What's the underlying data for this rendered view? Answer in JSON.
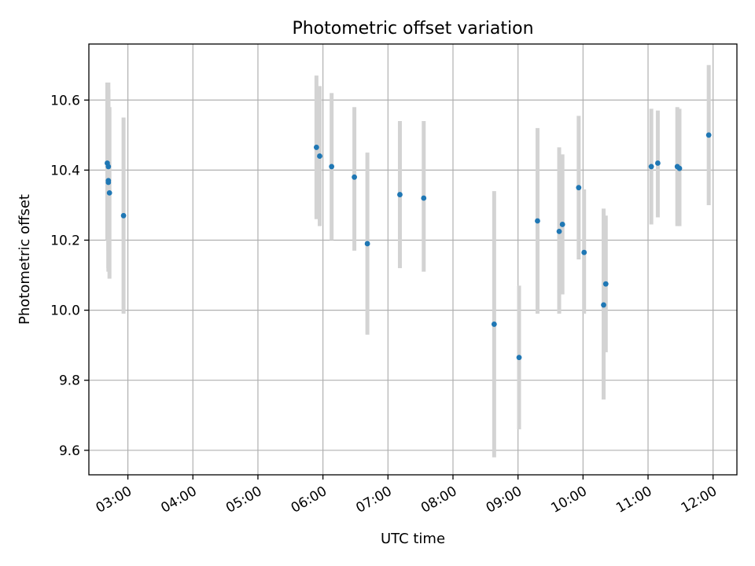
{
  "chart_data": {
    "type": "scatter",
    "title": "Photometric offset variation",
    "xlabel": "UTC time",
    "ylabel": "Photometric offset",
    "xlim": [
      "02:24",
      "12:22"
    ],
    "ylim": [
      9.53,
      10.76
    ],
    "x_ticks": [
      "03:00",
      "04:00",
      "05:00",
      "06:00",
      "07:00",
      "08:00",
      "09:00",
      "10:00",
      "11:00",
      "12:00"
    ],
    "y_ticks": [
      "9.6",
      "9.8",
      "10.0",
      "10.2",
      "10.4",
      "10.6"
    ],
    "grid": true,
    "marker_color": "#1f77b4",
    "errorbar_color": "#d3d3d3",
    "points": [
      {
        "x": "02:41",
        "y": 10.42,
        "err_low": 10.2,
        "err_high": 10.65
      },
      {
        "x": "02:42",
        "y": 10.41,
        "err_low": 10.17,
        "err_high": 10.65
      },
      {
        "x": "02:42",
        "y": 10.37,
        "err_low": 10.12,
        "err_high": 10.63
      },
      {
        "x": "02:42",
        "y": 10.365,
        "err_low": 10.11,
        "err_high": 10.63
      },
      {
        "x": "02:43",
        "y": 10.335,
        "err_low": 10.09,
        "err_high": 10.58
      },
      {
        "x": "02:56",
        "y": 10.27,
        "err_low": 9.99,
        "err_high": 10.55
      },
      {
        "x": "05:54",
        "y": 10.465,
        "err_low": 10.26,
        "err_high": 10.67
      },
      {
        "x": "05:57",
        "y": 10.44,
        "err_low": 10.24,
        "err_high": 10.64
      },
      {
        "x": "06:08",
        "y": 10.41,
        "err_low": 10.2,
        "err_high": 10.62
      },
      {
        "x": "06:29",
        "y": 10.38,
        "err_low": 10.17,
        "err_high": 10.58
      },
      {
        "x": "06:41",
        "y": 10.19,
        "err_low": 9.93,
        "err_high": 10.45
      },
      {
        "x": "07:11",
        "y": 10.33,
        "err_low": 10.12,
        "err_high": 10.54
      },
      {
        "x": "07:33",
        "y": 10.32,
        "err_low": 10.11,
        "err_high": 10.54
      },
      {
        "x": "08:38",
        "y": 9.96,
        "err_low": 9.58,
        "err_high": 10.34
      },
      {
        "x": "09:01",
        "y": 9.865,
        "err_low": 9.66,
        "err_high": 10.07
      },
      {
        "x": "09:18",
        "y": 10.255,
        "err_low": 9.99,
        "err_high": 10.52
      },
      {
        "x": "09:38",
        "y": 10.225,
        "err_low": 9.99,
        "err_high": 10.465
      },
      {
        "x": "09:41",
        "y": 10.245,
        "err_low": 10.045,
        "err_high": 10.445
      },
      {
        "x": "09:56",
        "y": 10.35,
        "err_low": 10.145,
        "err_high": 10.555
      },
      {
        "x": "10:01",
        "y": 10.165,
        "err_low": 9.99,
        "err_high": 10.345
      },
      {
        "x": "10:19",
        "y": 10.015,
        "err_low": 9.745,
        "err_high": 10.29
      },
      {
        "x": "10:21",
        "y": 10.075,
        "err_low": 9.88,
        "err_high": 10.27
      },
      {
        "x": "11:03",
        "y": 10.41,
        "err_low": 10.245,
        "err_high": 10.575
      },
      {
        "x": "11:09",
        "y": 10.42,
        "err_low": 10.265,
        "err_high": 10.57
      },
      {
        "x": "11:27",
        "y": 10.41,
        "err_low": 10.24,
        "err_high": 10.58
      },
      {
        "x": "11:29",
        "y": 10.405,
        "err_low": 10.24,
        "err_high": 10.575
      },
      {
        "x": "11:56",
        "y": 10.5,
        "err_low": 10.3,
        "err_high": 10.7
      }
    ]
  }
}
